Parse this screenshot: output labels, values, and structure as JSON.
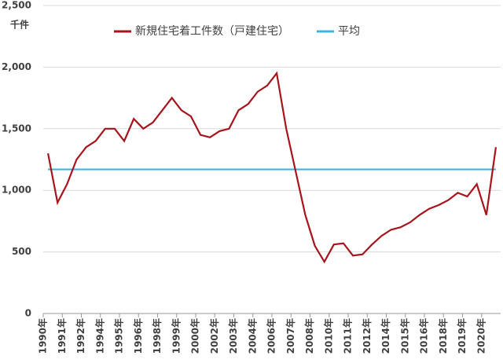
{
  "chart_data": {
    "type": "line",
    "unit_label": "千件",
    "categories": [
      "1990年",
      null,
      "1991年",
      null,
      "1992年",
      null,
      "1994年",
      null,
      "1995年",
      null,
      "1996年",
      null,
      "1998年",
      null,
      "1999年",
      null,
      "2000年",
      null,
      "2002年",
      null,
      "2003年",
      null,
      "2004年",
      null,
      "2006年",
      null,
      "2007年",
      null,
      "2008年",
      null,
      "2010年",
      null,
      "2011年",
      null,
      "2012年",
      null,
      "2014年",
      null,
      "2015年",
      null,
      "2016年",
      null,
      "2018年",
      null,
      "2019年",
      null,
      "2020年",
      null
    ],
    "series": [
      {
        "name": "新規住宅着工件数（戸建住宅）",
        "color": "#a8141c",
        "values": [
          1300,
          900,
          1050,
          1250,
          1350,
          1400,
          1500,
          1500,
          1400,
          1580,
          1500,
          1550,
          1650,
          1750,
          1650,
          1600,
          1450,
          1430,
          1480,
          1500,
          1650,
          1700,
          1800,
          1850,
          1950,
          1500,
          1150,
          800,
          550,
          420,
          560,
          570,
          470,
          480,
          560,
          630,
          680,
          700,
          740,
          800,
          850,
          880,
          920,
          980,
          950,
          1050,
          800,
          1350
        ]
      },
      {
        "name": "平均",
        "color": "#3cb4e6",
        "values": [
          1170,
          1170,
          1170,
          1170,
          1170,
          1170,
          1170,
          1170,
          1170,
          1170,
          1170,
          1170,
          1170,
          1170,
          1170,
          1170,
          1170,
          1170,
          1170,
          1170,
          1170,
          1170,
          1170,
          1170,
          1170,
          1170,
          1170,
          1170,
          1170,
          1170,
          1170,
          1170,
          1170,
          1170,
          1170,
          1170,
          1170,
          1170,
          1170,
          1170,
          1170,
          1170,
          1170,
          1170,
          1170,
          1170,
          1170,
          1170
        ]
      }
    ],
    "ylim": [
      0,
      2500
    ],
    "yticks": [
      0,
      500,
      {
        "value": 1000,
        "label": "1,000"
      },
      {
        "value": 1500,
        "label": "1,500"
      },
      {
        "value": 2000,
        "label": "2,000"
      },
      {
        "value": 2500,
        "label": "2,500"
      }
    ],
    "grid": true,
    "legend": "top"
  }
}
